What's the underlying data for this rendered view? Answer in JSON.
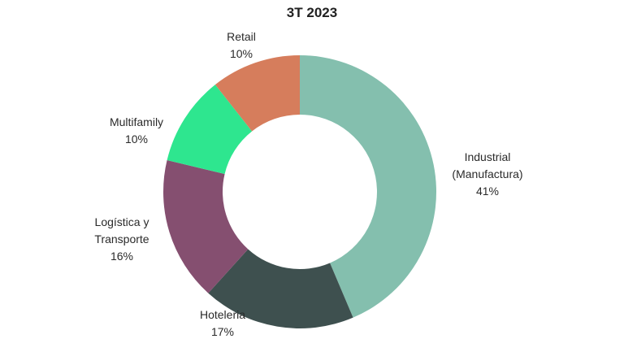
{
  "chart_data": {
    "type": "pie",
    "variant": "donut",
    "title": "3T 2023",
    "slices": [
      {
        "label_lines": [
          "Industrial",
          "(Manufactura)"
        ],
        "value": 41,
        "value_label": "41%",
        "color": "#84bfae"
      },
      {
        "label_lines": [
          "Hoteleria"
        ],
        "value": 17,
        "value_label": "17%",
        "color": "#3e504f"
      },
      {
        "label_lines": [
          "Logística y",
          "Transporte"
        ],
        "value": 16,
        "value_label": "16%",
        "color": "#854f70"
      },
      {
        "label_lines": [
          "Multifamily"
        ],
        "value": 10,
        "value_label": "10%",
        "color": "#2ee68f"
      },
      {
        "label_lines": [
          "Retail"
        ],
        "value": 10,
        "value_label": "10%",
        "color": "#d67d5c"
      }
    ],
    "legend": "none",
    "start_angle": "top, clockwise"
  }
}
